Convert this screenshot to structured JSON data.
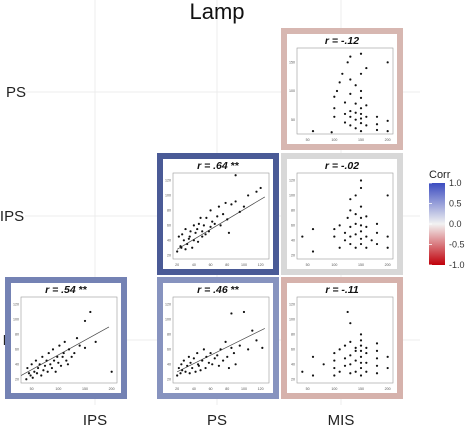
{
  "chart_data": {
    "type": "scatter",
    "title": "Lamp",
    "row_labels": [
      "PS",
      "IPS",
      "RS"
    ],
    "col_labels": [
      "IPS",
      "PS",
      "MIS"
    ],
    "legend": {
      "title": "Corr",
      "ticks": [
        "1.0",
        "0.5",
        "0.0",
        "-0.5",
        "-1.0"
      ],
      "tick_values": [
        1.0,
        0.5,
        0.0,
        -0.5,
        -1.0
      ],
      "colors": {
        "high": "#3b4cc0",
        "mid": "#f2f2f2",
        "low": "#c0000a"
      },
      "placement": "right"
    },
    "panels": [
      {
        "id": "ps-mis",
        "row": 0,
        "col": 2,
        "label": "r = -.12",
        "r": -0.12,
        "sig": "",
        "fit_line": false,
        "border_color": "#d7b7b1",
        "x_ticks": [
          "50",
          "100",
          "150",
          "200"
        ],
        "y_ticks": [
          "50",
          "100",
          "150"
        ],
        "xlim": [
          30,
          210
        ],
        "ylim": [
          25,
          175
        ],
        "points": [
          [
            60,
            30
          ],
          [
            95,
            28
          ],
          [
            100,
            55
          ],
          [
            100,
            70
          ],
          [
            100,
            90
          ],
          [
            105,
            100
          ],
          [
            110,
            115
          ],
          [
            115,
            130
          ],
          [
            120,
            45
          ],
          [
            120,
            60
          ],
          [
            120,
            80
          ],
          [
            125,
            150
          ],
          [
            130,
            40
          ],
          [
            130,
            55
          ],
          [
            130,
            65
          ],
          [
            130,
            95
          ],
          [
            130,
            120
          ],
          [
            130,
            160
          ],
          [
            140,
            35
          ],
          [
            140,
            50
          ],
          [
            140,
            62
          ],
          [
            140,
            78
          ],
          [
            140,
            110
          ],
          [
            150,
            30
          ],
          [
            150,
            44
          ],
          [
            150,
            52
          ],
          [
            150,
            60
          ],
          [
            150,
            70
          ],
          [
            150,
            88
          ],
          [
            150,
            100
          ],
          [
            150,
            130
          ],
          [
            150,
            165
          ],
          [
            160,
            40
          ],
          [
            160,
            55
          ],
          [
            160,
            75
          ],
          [
            160,
            140
          ],
          [
            180,
            32
          ],
          [
            180,
            42
          ],
          [
            180,
            55
          ],
          [
            200,
            30
          ],
          [
            200,
            48
          ],
          [
            200,
            150
          ]
        ]
      },
      {
        "id": "ips-ps",
        "row": 1,
        "col": 1,
        "label": "r = .64",
        "r": 0.64,
        "sig": "**",
        "fit_line": true,
        "border_color": "#4a5a96",
        "x_ticks": [
          "20",
          "40",
          "60",
          "80",
          "100",
          "120"
        ],
        "y_ticks": [
          "20",
          "40",
          "60",
          "80",
          "100",
          "120"
        ],
        "xlim": [
          15,
          130
        ],
        "ylim": [
          15,
          130
        ],
        "fit": [
          [
            20,
            28
          ],
          [
            125,
            98
          ]
        ],
        "points": [
          [
            20,
            25
          ],
          [
            22,
            45
          ],
          [
            24,
            32
          ],
          [
            25,
            30
          ],
          [
            26,
            48
          ],
          [
            28,
            40
          ],
          [
            30,
            28
          ],
          [
            30,
            55
          ],
          [
            32,
            35
          ],
          [
            34,
            42
          ],
          [
            35,
            45
          ],
          [
            36,
            52
          ],
          [
            38,
            30
          ],
          [
            40,
            40
          ],
          [
            40,
            60
          ],
          [
            42,
            50
          ],
          [
            44,
            55
          ],
          [
            45,
            38
          ],
          [
            46,
            62
          ],
          [
            48,
            70
          ],
          [
            50,
            45
          ],
          [
            50,
            52
          ],
          [
            52,
            60
          ],
          [
            54,
            48
          ],
          [
            55,
            70
          ],
          [
            58,
            52
          ],
          [
            60,
            58
          ],
          [
            60,
            80
          ],
          [
            62,
            65
          ],
          [
            65,
            62
          ],
          [
            68,
            72
          ],
          [
            70,
            85
          ],
          [
            72,
            60
          ],
          [
            75,
            75
          ],
          [
            78,
            90
          ],
          [
            80,
            68
          ],
          [
            82,
            50
          ],
          [
            85,
            88
          ],
          [
            90,
            92
          ],
          [
            95,
            78
          ],
          [
            100,
            85
          ],
          [
            105,
            100
          ],
          [
            115,
            105
          ],
          [
            120,
            110
          ],
          [
            90,
            127
          ]
        ]
      },
      {
        "id": "ips-mis",
        "row": 1,
        "col": 2,
        "label": "r = -.02",
        "r": -0.02,
        "sig": "",
        "fit_line": false,
        "border_color": "#d8d8d8",
        "x_ticks": [
          "50",
          "100",
          "150",
          "200"
        ],
        "y_ticks": [
          "20",
          "40",
          "60",
          "80",
          "100",
          "120"
        ],
        "xlim": [
          30,
          210
        ],
        "ylim": [
          15,
          130
        ],
        "points": [
          [
            40,
            45
          ],
          [
            60,
            25
          ],
          [
            60,
            55
          ],
          [
            100,
            45
          ],
          [
            100,
            55
          ],
          [
            110,
            30
          ],
          [
            110,
            60
          ],
          [
            120,
            40
          ],
          [
            120,
            50
          ],
          [
            125,
            70
          ],
          [
            130,
            35
          ],
          [
            130,
            45
          ],
          [
            130,
            58
          ],
          [
            130,
            80
          ],
          [
            130,
            95
          ],
          [
            140,
            30
          ],
          [
            140,
            48
          ],
          [
            140,
            62
          ],
          [
            140,
            75
          ],
          [
            140,
            100
          ],
          [
            150,
            35
          ],
          [
            150,
            42
          ],
          [
            150,
            52
          ],
          [
            150,
            60
          ],
          [
            150,
            70
          ],
          [
            150,
            85
          ],
          [
            150,
            110
          ],
          [
            150,
            120
          ],
          [
            160,
            30
          ],
          [
            160,
            45
          ],
          [
            160,
            58
          ],
          [
            160,
            72
          ],
          [
            170,
            40
          ],
          [
            180,
            35
          ],
          [
            180,
            50
          ],
          [
            180,
            62
          ],
          [
            200,
            30
          ],
          [
            200,
            45
          ],
          [
            200,
            100
          ]
        ]
      },
      {
        "id": "rs-ips",
        "row": 2,
        "col": 0,
        "label": "r = .54",
        "r": 0.54,
        "sig": "**",
        "fit_line": true,
        "border_color": "#7482b4",
        "x_ticks": [
          "50",
          "100",
          "150",
          "200"
        ],
        "y_ticks": [
          "20",
          "40",
          "60",
          "80",
          "100",
          "120"
        ],
        "xlim": [
          30,
          210
        ],
        "ylim": [
          15,
          130
        ],
        "fit": [
          [
            30,
            25
          ],
          [
            195,
            90
          ]
        ],
        "points": [
          [
            40,
            20
          ],
          [
            42,
            35
          ],
          [
            45,
            28
          ],
          [
            48,
            25
          ],
          [
            50,
            40
          ],
          [
            52,
            22
          ],
          [
            55,
            30
          ],
          [
            58,
            45
          ],
          [
            60,
            28
          ],
          [
            62,
            35
          ],
          [
            65,
            40
          ],
          [
            68,
            25
          ],
          [
            70,
            50
          ],
          [
            72,
            32
          ],
          [
            75,
            38
          ],
          [
            78,
            45
          ],
          [
            80,
            30
          ],
          [
            82,
            55
          ],
          [
            85,
            40
          ],
          [
            88,
            35
          ],
          [
            90,
            60
          ],
          [
            92,
            45
          ],
          [
            95,
            30
          ],
          [
            98,
            50
          ],
          [
            100,
            42
          ],
          [
            102,
            65
          ],
          [
            105,
            38
          ],
          [
            108,
            50
          ],
          [
            110,
            55
          ],
          [
            112,
            70
          ],
          [
            115,
            45
          ],
          [
            118,
            40
          ],
          [
            120,
            60
          ],
          [
            125,
            50
          ],
          [
            130,
            55
          ],
          [
            135,
            75
          ],
          [
            140,
            65
          ],
          [
            150,
            62
          ],
          [
            150,
            98
          ],
          [
            160,
            110
          ],
          [
            170,
            70
          ],
          [
            200,
            30
          ]
        ]
      },
      {
        "id": "rs-ps",
        "row": 2,
        "col": 1,
        "label": "r = .46",
        "r": 0.46,
        "sig": "**",
        "fit_line": true,
        "border_color": "#8793bf",
        "x_ticks": [
          "20",
          "40",
          "60",
          "80",
          "100",
          "120"
        ],
        "y_ticks": [
          "20",
          "40",
          "60",
          "80",
          "100",
          "120"
        ],
        "xlim": [
          15,
          130
        ],
        "ylim": [
          15,
          130
        ],
        "fit": [
          [
            20,
            30
          ],
          [
            125,
            88
          ]
        ],
        "points": [
          [
            20,
            25
          ],
          [
            22,
            35
          ],
          [
            24,
            28
          ],
          [
            25,
            40
          ],
          [
            26,
            32
          ],
          [
            28,
            45
          ],
          [
            30,
            30
          ],
          [
            32,
            38
          ],
          [
            34,
            50
          ],
          [
            35,
            28
          ],
          [
            36,
            42
          ],
          [
            38,
            35
          ],
          [
            40,
            48
          ],
          [
            42,
            30
          ],
          [
            44,
            55
          ],
          [
            45,
            40
          ],
          [
            46,
            38
          ],
          [
            48,
            32
          ],
          [
            50,
            45
          ],
          [
            52,
            60
          ],
          [
            54,
            35
          ],
          [
            55,
            50
          ],
          [
            58,
            42
          ],
          [
            60,
            55
          ],
          [
            62,
            40
          ],
          [
            65,
            48
          ],
          [
            68,
            52
          ],
          [
            70,
            38
          ],
          [
            72,
            60
          ],
          [
            75,
            45
          ],
          [
            78,
            70
          ],
          [
            80,
            50
          ],
          [
            82,
            35
          ],
          [
            85,
            62
          ],
          [
            88,
            55
          ],
          [
            90,
            40
          ],
          [
            95,
            65
          ],
          [
            100,
            110
          ],
          [
            105,
            60
          ],
          [
            110,
            85
          ],
          [
            115,
            72
          ],
          [
            122,
            62
          ],
          [
            85,
            108
          ]
        ]
      },
      {
        "id": "rs-mis",
        "row": 2,
        "col": 2,
        "label": "r = -.11",
        "r": -0.11,
        "sig": "",
        "fit_line": false,
        "border_color": "#d6b2ac",
        "x_ticks": [
          "50",
          "100",
          "150",
          "200"
        ],
        "y_ticks": [
          "20",
          "40",
          "60",
          "80",
          "100",
          "120"
        ],
        "xlim": [
          30,
          210
        ],
        "ylim": [
          15,
          130
        ],
        "points": [
          [
            40,
            30
          ],
          [
            60,
            25
          ],
          [
            60,
            50
          ],
          [
            80,
            40
          ],
          [
            100,
            25
          ],
          [
            100,
            35
          ],
          [
            100,
            45
          ],
          [
            100,
            55
          ],
          [
            110,
            30
          ],
          [
            110,
            60
          ],
          [
            120,
            38
          ],
          [
            120,
            48
          ],
          [
            120,
            65
          ],
          [
            125,
            110
          ],
          [
            130,
            28
          ],
          [
            130,
            40
          ],
          [
            130,
            52
          ],
          [
            130,
            70
          ],
          [
            130,
            95
          ],
          [
            140,
            30
          ],
          [
            140,
            45
          ],
          [
            140,
            58
          ],
          [
            140,
            62
          ],
          [
            150,
            25
          ],
          [
            150,
            35
          ],
          [
            150,
            42
          ],
          [
            150,
            50
          ],
          [
            150,
            58
          ],
          [
            150,
            65
          ],
          [
            150,
            72
          ],
          [
            150,
            80
          ],
          [
            160,
            30
          ],
          [
            160,
            42
          ],
          [
            160,
            55
          ],
          [
            160,
            62
          ],
          [
            180,
            28
          ],
          [
            180,
            38
          ],
          [
            180,
            48
          ],
          [
            180,
            58
          ],
          [
            180,
            68
          ],
          [
            200,
            35
          ],
          [
            200,
            50
          ]
        ]
      }
    ]
  }
}
